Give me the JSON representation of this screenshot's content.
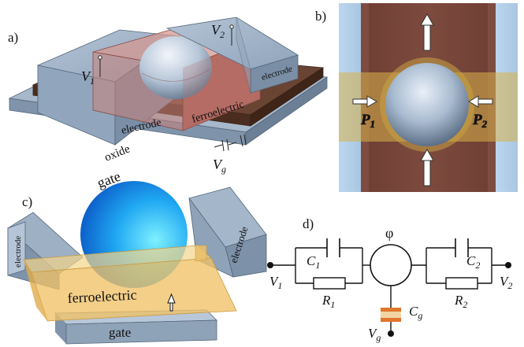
{
  "panel_a": {
    "letter": "a)",
    "v1": "V",
    "v1_sub": "1",
    "v2": "V",
    "v2_sub": "2",
    "electrode_left": "electrode",
    "electrode_right": "electrode",
    "ferroelectric": "ferroelectric",
    "oxide": "oxide",
    "gate": "gate",
    "vg": "V",
    "vg_sub": "g"
  },
  "panel_b": {
    "letter": "b)",
    "p1": "P",
    "p1_sub": "1",
    "p2": "P",
    "p2_sub": "2"
  },
  "panel_c": {
    "letter": "c)",
    "electrode_left": "electrode",
    "electrode_right": "electrode",
    "ferroelectric": "ferroelectric",
    "gate": "gate"
  },
  "panel_d": {
    "letter": "d)",
    "phi": "φ",
    "c1": "C",
    "c1_sub": "1",
    "c2": "C",
    "c2_sub": "2",
    "r1": "R",
    "r1_sub": "1",
    "r2": "R",
    "r2_sub": "2",
    "v1": "V",
    "v1_sub": "1",
    "v2": "V",
    "v2_sub": "2",
    "cg": "C",
    "cg_sub": "g",
    "vg": "V",
    "vg_sub": "g"
  },
  "colors": {
    "electrode": "#9fb3c8",
    "oxide": "#5a3a2a",
    "ferroelectric": "#c47b74",
    "yellow_film": "#f0c060",
    "sphere": "#2aa0ff"
  }
}
